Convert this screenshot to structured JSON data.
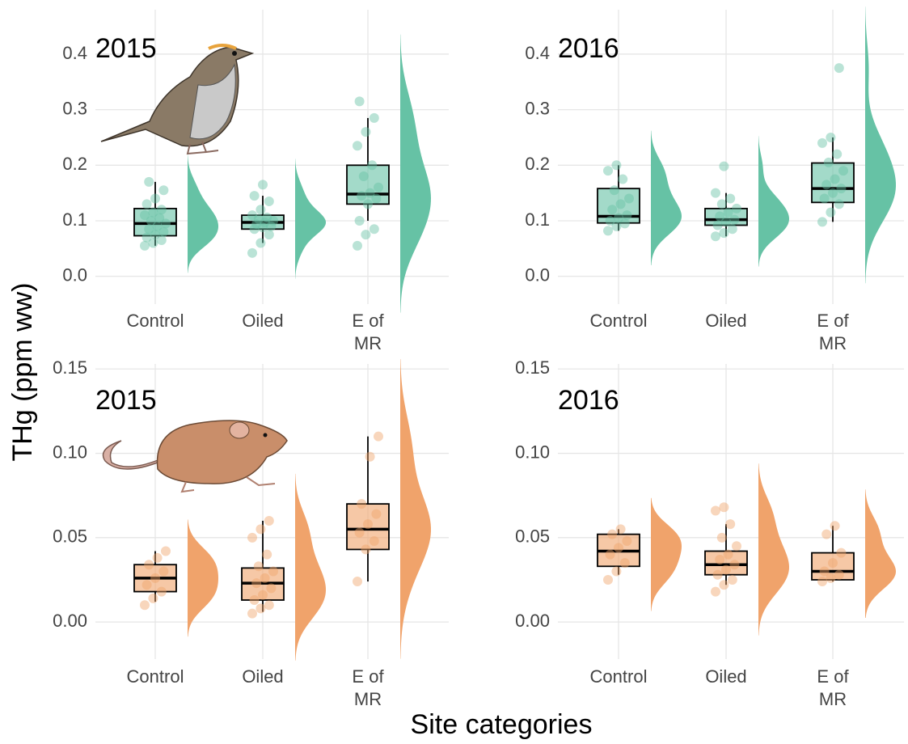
{
  "y_label": "THg (ppm ww)",
  "x_label": "Site categories",
  "chart_data": [
    {
      "type": "box",
      "title": "2015",
      "categories": [
        "Control",
        "Oiled",
        "E of\nMR"
      ],
      "color": "#66c2a5",
      "grid": true,
      "ylim": [
        -0.05,
        0.48
      ],
      "yticks": [
        {
          "value": 0,
          "label": "0.0"
        },
        0.1,
        0.2,
        0.3,
        0.4
      ],
      "boxes": [
        {
          "min": 0.055,
          "q1": 0.073,
          "median": 0.095,
          "q3": 0.122,
          "max": 0.17
        },
        {
          "min": 0.06,
          "q1": 0.085,
          "median": 0.097,
          "q3": 0.11,
          "max": 0.145
        },
        {
          "min": 0.1,
          "q1": 0.13,
          "median": 0.148,
          "q3": 0.2,
          "max": 0.285
        }
      ],
      "points": [
        [
          0.055,
          0.06,
          0.065,
          0.07,
          0.075,
          0.08,
          0.085,
          0.09,
          0.095,
          0.1,
          0.105,
          0.11,
          0.115,
          0.12,
          0.13,
          0.14,
          0.155,
          0.17
        ],
        [
          0.042,
          0.06,
          0.075,
          0.085,
          0.088,
          0.09,
          0.094,
          0.097,
          0.1,
          0.103,
          0.106,
          0.11,
          0.12,
          0.135,
          0.145,
          0.165
        ],
        [
          0.055,
          0.075,
          0.085,
          0.1,
          0.13,
          0.14,
          0.145,
          0.15,
          0.16,
          0.18,
          0.2,
          0.235,
          0.26,
          0.285,
          0.315
        ]
      ]
    },
    {
      "type": "box",
      "title": "2016",
      "categories": [
        "Control",
        "Oiled",
        "E of\nMR"
      ],
      "color": "#66c2a5",
      "grid": true,
      "ylim": [
        -0.05,
        0.48
      ],
      "yticks": [
        {
          "value": 0,
          "label": "0.0"
        },
        0.1,
        0.2,
        0.3,
        0.4
      ],
      "boxes": [
        {
          "min": 0.082,
          "q1": 0.096,
          "median": 0.108,
          "q3": 0.158,
          "max": 0.2
        },
        {
          "min": 0.072,
          "q1": 0.092,
          "median": 0.102,
          "q3": 0.122,
          "max": 0.15
        },
        {
          "min": 0.098,
          "q1": 0.133,
          "median": 0.158,
          "q3": 0.204,
          "max": 0.25
        }
      ],
      "points": [
        [
          0.082,
          0.09,
          0.095,
          0.1,
          0.105,
          0.11,
          0.12,
          0.13,
          0.14,
          0.155,
          0.175,
          0.19,
          0.2
        ],
        [
          0.072,
          0.078,
          0.085,
          0.092,
          0.098,
          0.102,
          0.108,
          0.115,
          0.122,
          0.13,
          0.14,
          0.15,
          0.198
        ],
        [
          0.098,
          0.115,
          0.13,
          0.14,
          0.15,
          0.158,
          0.165,
          0.175,
          0.19,
          0.205,
          0.22,
          0.24,
          0.25,
          0.375
        ]
      ]
    },
    {
      "type": "box",
      "title": "2015",
      "categories": [
        "Control",
        "Oiled",
        "E of\nMR"
      ],
      "color": "#f0a36b",
      "grid": true,
      "ylim": [
        -0.022,
        0.153
      ],
      "yticks": [
        {
          "value": 0,
          "label": "0.00"
        },
        0.05,
        {
          "value": 0.1,
          "label": "0.10"
        },
        0.15
      ],
      "boxes": [
        {
          "min": 0.012,
          "q1": 0.018,
          "median": 0.026,
          "q3": 0.034,
          "max": 0.042
        },
        {
          "min": 0.006,
          "q1": 0.013,
          "median": 0.023,
          "q3": 0.032,
          "max": 0.06
        },
        {
          "min": 0.024,
          "q1": 0.043,
          "median": 0.055,
          "q3": 0.07,
          "max": 0.11
        }
      ],
      "points": [
        [
          0.01,
          0.014,
          0.018,
          0.022,
          0.026,
          0.03,
          0.034,
          0.038,
          0.042
        ],
        [
          0.005,
          0.008,
          0.01,
          0.013,
          0.016,
          0.02,
          0.023,
          0.026,
          0.03,
          0.033,
          0.04,
          0.05,
          0.055,
          0.06
        ],
        [
          0.024,
          0.043,
          0.048,
          0.053,
          0.058,
          0.064,
          0.07,
          0.098,
          0.11
        ]
      ]
    },
    {
      "type": "box",
      "title": "2016",
      "categories": [
        "Control",
        "Oiled",
        "E of\nMR"
      ],
      "color": "#f0a36b",
      "grid": true,
      "ylim": [
        -0.022,
        0.153
      ],
      "yticks": [
        {
          "value": 0,
          "label": "0.00"
        },
        0.05,
        {
          "value": 0.1,
          "label": "0.10"
        },
        0.15
      ],
      "boxes": [
        {
          "min": 0.028,
          "q1": 0.033,
          "median": 0.042,
          "q3": 0.052,
          "max": 0.055
        },
        {
          "min": 0.022,
          "q1": 0.028,
          "median": 0.034,
          "q3": 0.042,
          "max": 0.058
        },
        {
          "min": 0.024,
          "q1": 0.025,
          "median": 0.03,
          "q3": 0.041,
          "max": 0.057
        }
      ],
      "points": [
        [
          0.025,
          0.03,
          0.035,
          0.04,
          0.044,
          0.048,
          0.052,
          0.055
        ],
        [
          0.018,
          0.022,
          0.025,
          0.028,
          0.031,
          0.034,
          0.037,
          0.04,
          0.045,
          0.05,
          0.058,
          0.066,
          0.068
        ],
        [
          0.024,
          0.026,
          0.028,
          0.03,
          0.035,
          0.041,
          0.052,
          0.057
        ]
      ]
    }
  ]
}
